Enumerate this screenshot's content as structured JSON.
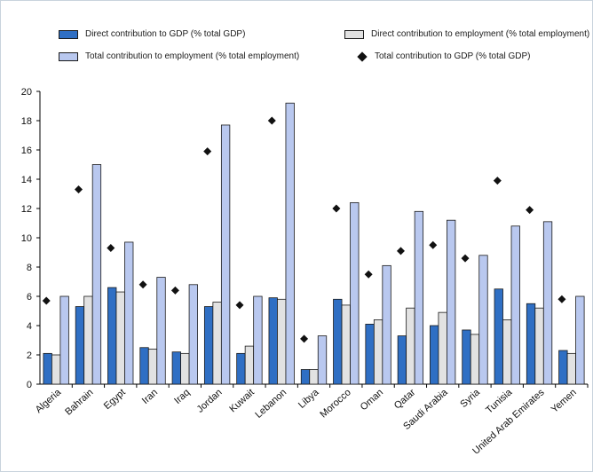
{
  "chart_data": {
    "type": "bar",
    "categories": [
      "Algeria",
      "Bahrain",
      "Egypt",
      "Iran",
      "Iraq",
      "Jordan",
      "Kuwait",
      "Lebanon",
      "Libya",
      "Morocco",
      "Oman",
      "Qatar",
      "Saudi Arabia",
      "Syria",
      "Tunisia",
      "United Arab Emirates",
      "Yemen"
    ],
    "series": [
      {
        "name": "Direct contribution to GDP (% total GDP)",
        "kind": "bar",
        "color": "#2f6fc4",
        "values": [
          2.1,
          5.3,
          6.6,
          2.5,
          2.2,
          5.3,
          2.1,
          5.9,
          1.0,
          5.8,
          4.1,
          3.3,
          4.0,
          3.7,
          6.5,
          5.5,
          2.3
        ]
      },
      {
        "name": "Direct contribution to employment (% total employment)",
        "kind": "bar",
        "color": "#e2e2e2",
        "values": [
          2.0,
          6.0,
          6.3,
          2.4,
          2.1,
          5.6,
          2.6,
          5.8,
          1.0,
          5.4,
          4.4,
          5.2,
          4.9,
          3.4,
          4.4,
          5.2,
          2.1
        ]
      },
      {
        "name": "Total contribution to employment (% total employment)",
        "kind": "bar",
        "color": "#b9c8ef",
        "values": [
          6.0,
          15.0,
          9.7,
          7.3,
          6.8,
          17.7,
          6.0,
          19.2,
          3.3,
          12.4,
          8.1,
          11.8,
          11.2,
          8.8,
          10.8,
          11.1,
          6.0
        ]
      },
      {
        "name": "Total contribution to GDP (% total GDP)",
        "kind": "marker",
        "color": "#111111",
        "values": [
          5.7,
          13.3,
          9.3,
          6.8,
          6.4,
          15.9,
          5.4,
          18.0,
          3.1,
          12.0,
          7.5,
          9.1,
          9.5,
          8.6,
          13.9,
          11.9,
          5.8
        ]
      }
    ],
    "ylim": [
      0,
      20
    ],
    "yticks": [
      0,
      2,
      4,
      6,
      8,
      10,
      12,
      14,
      16,
      18,
      20
    ],
    "grid": false,
    "legend_position": "top"
  }
}
